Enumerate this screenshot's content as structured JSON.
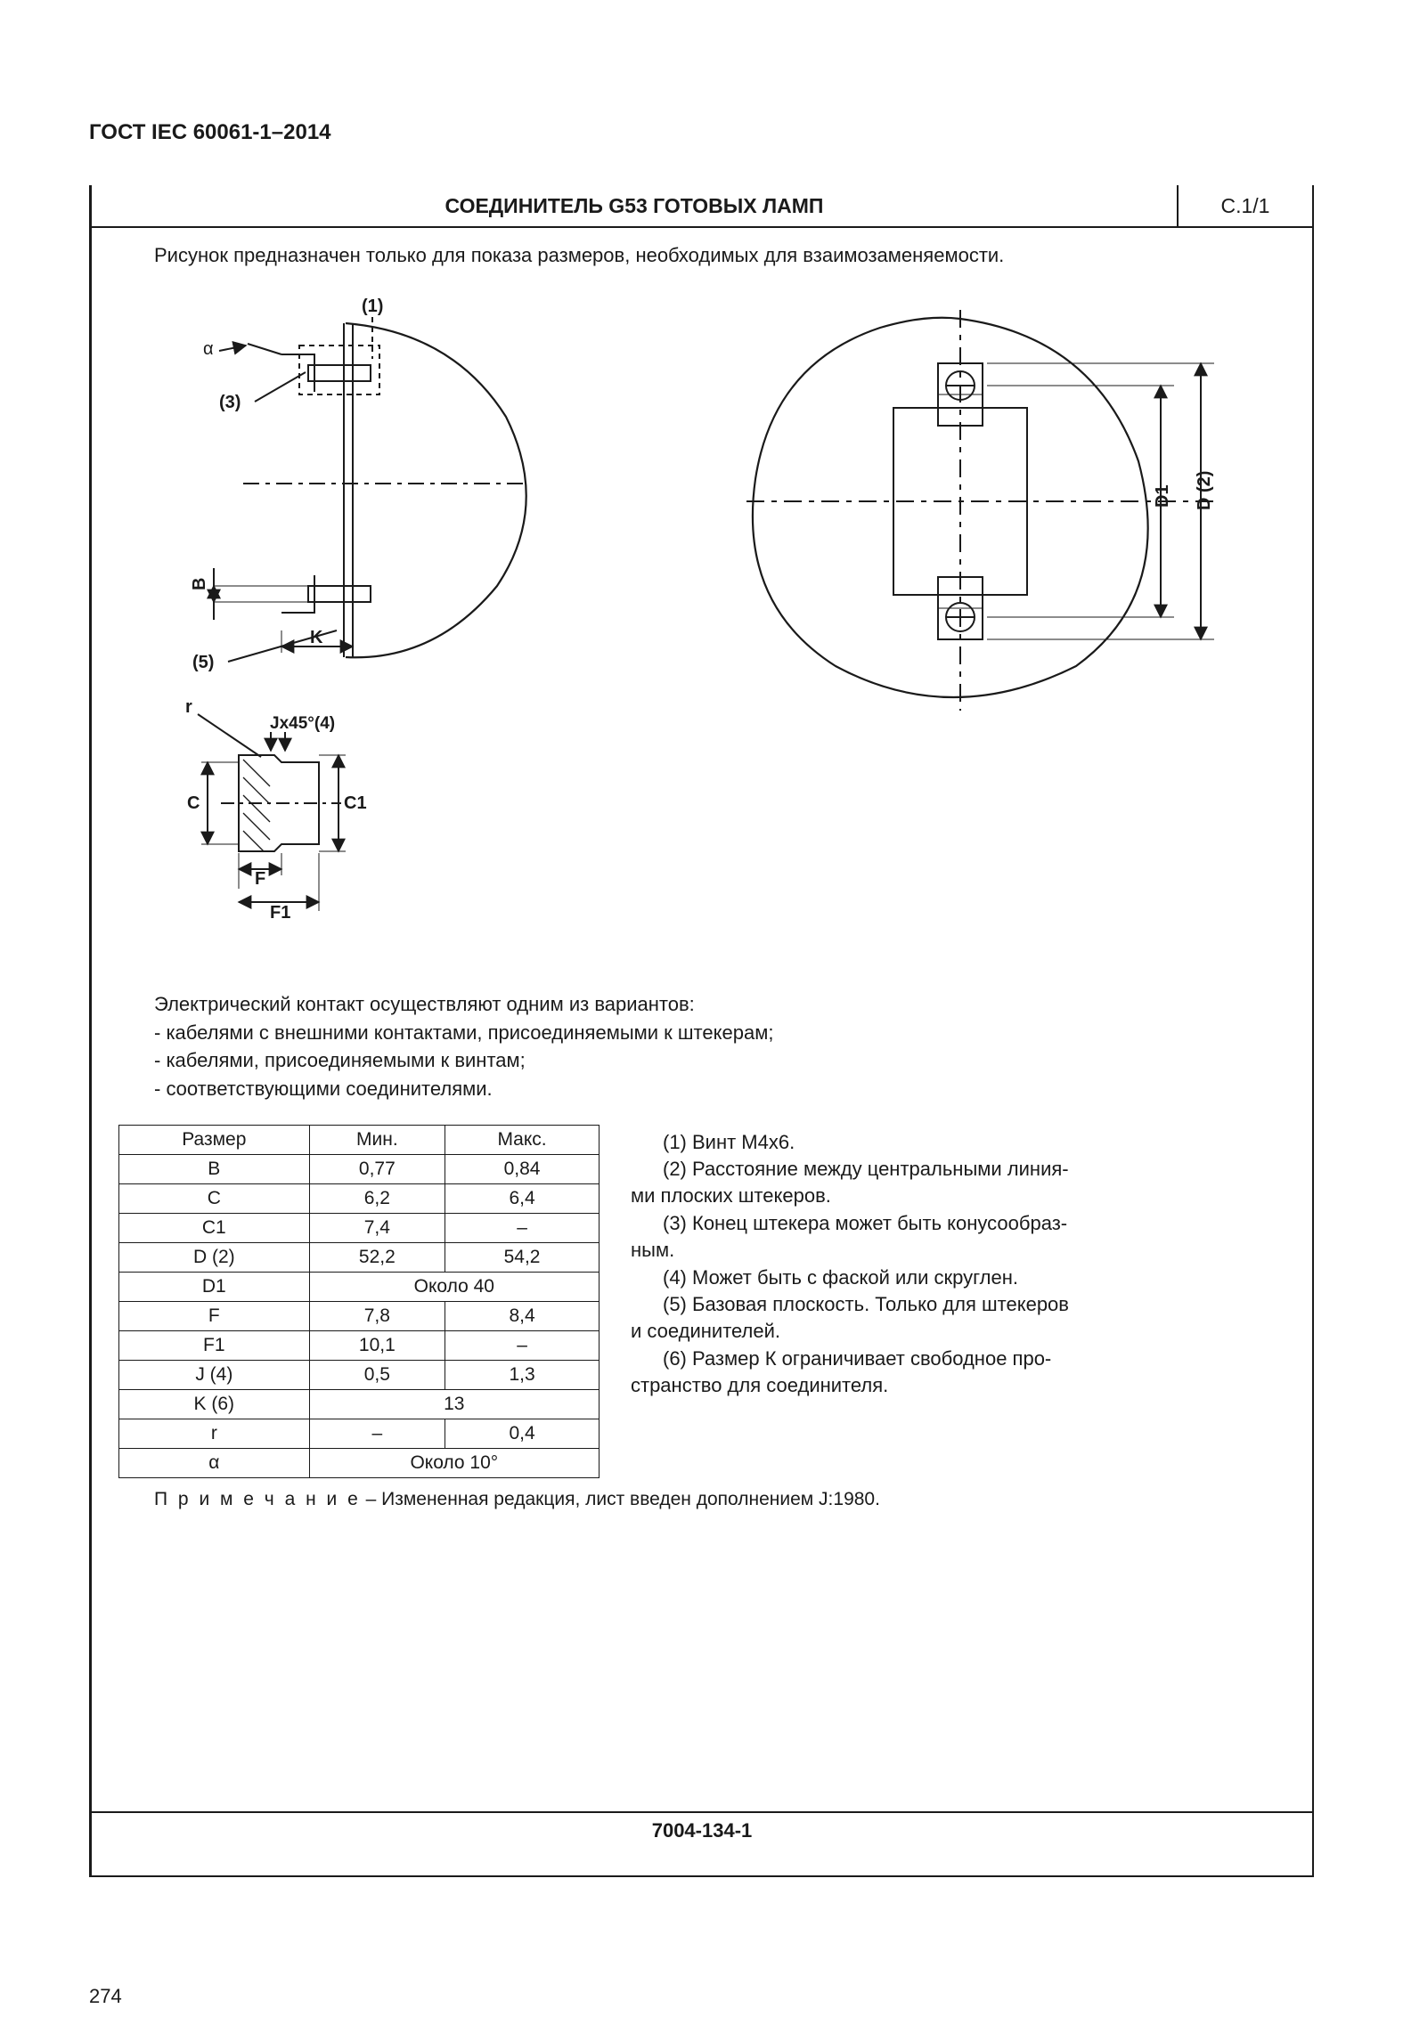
{
  "doc_header": "ГОСТ IEC 60061-1–2014",
  "title": "СОЕДИНИТЕЛЬ G53 ГОТОВЫХ ЛАМП",
  "code": "C.1/1",
  "intro": "Рисунок предназначен только для показа размеров, необходимых для взаимозаменяемости.",
  "diagram_labels": {
    "n1": "(1)",
    "n3": "(3)",
    "n5": "(5)",
    "alpha": "α",
    "B": "B",
    "K": "K",
    "r": "r",
    "Jx": "Jx45°(4)",
    "C": "C",
    "C1": "C1",
    "F": "F",
    "F1": "F1",
    "D1": "D1",
    "D2": "D (2)"
  },
  "body": {
    "lead": "Электрический контакт осуществляют одним из вариантов:",
    "b1": "- кабелями с внешними контактами, присоединяемыми к штекерам;",
    "b2": "- кабелями, присоединяемыми к винтам;",
    "b3": "- соответствующими соединителями."
  },
  "table": {
    "headers": {
      "dim": "Размер",
      "min": "Мин.",
      "max": "Макс."
    },
    "rows": [
      {
        "dim": "B",
        "min": "0,77",
        "max": "0,84",
        "span": false
      },
      {
        "dim": "C",
        "min": "6,2",
        "max": "6,4",
        "span": false
      },
      {
        "dim": "C1",
        "min": "7,4",
        "max": "–",
        "span": false
      },
      {
        "dim": "D (2)",
        "min": "52,2",
        "max": "54,2",
        "span": false
      },
      {
        "dim": "D1",
        "min": "Около 40",
        "max": "",
        "span": true
      },
      {
        "dim": "F",
        "min": "7,8",
        "max": "8,4",
        "span": false
      },
      {
        "dim": "F1",
        "min": "10,1",
        "max": "–",
        "span": false
      },
      {
        "dim": "J (4)",
        "min": "0,5",
        "max": "1,3",
        "span": false
      },
      {
        "dim": "K (6)",
        "min": "13",
        "max": "",
        "span": true
      },
      {
        "dim": "r",
        "min": "–",
        "max": "0,4",
        "span": false
      },
      {
        "dim": "α",
        "min": "Около 10°",
        "max": "",
        "span": true
      }
    ]
  },
  "notes": {
    "n1": "(1) Винт М4х6.",
    "n2a": "(2) Расстояние между центральными линия-",
    "n2b": "ми плоских штекеров.",
    "n3a": "(3) Конец штекера может быть конусообраз-",
    "n3b": "ным.",
    "n4": "(4) Может быть с фаской или скруглен.",
    "n5a": "(5) Базовая плоскость. Только для штекеров",
    "n5b": "и соединителей.",
    "n6a": "(6) Размер К ограничивает свободное про-",
    "n6b": "странство для соединителя."
  },
  "footnote_label": "П р и м е ч а н и е",
  "footnote_text": " – Измененная редакция, лист введен дополнением J:1980.",
  "footer_code": "7004-134-1",
  "page_number": "274",
  "colors": {
    "stroke": "#1a1a1a",
    "bg": "#ffffff"
  }
}
